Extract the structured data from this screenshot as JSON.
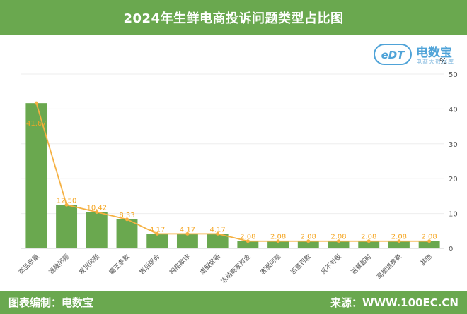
{
  "header": {
    "title": "2024年生鲜电商投诉问题类型占比图"
  },
  "logo": {
    "edt": "eDT",
    "brand": "电数宝",
    "sub": "电商大数据库"
  },
  "unit": "%",
  "footer": {
    "left": "图表编制：电数宝",
    "right": "来源：WWW.100EC.CN"
  },
  "colors": {
    "bar": "#6aa84f",
    "line": "#f5b041",
    "header": "#6aa84f",
    "label": "#f5a623"
  },
  "chart_data": {
    "type": "bar",
    "categories": [
      "商品质量",
      "退款问题",
      "发货问题",
      "霸王条款",
      "售后服务",
      "网络欺诈",
      "虚假促销",
      "冻结商家资金",
      "客服问题",
      "恶意罚款",
      "货不对板",
      "送餐超时",
      "高额退费费"
    ],
    "values": [
      41.67,
      12.5,
      10.42,
      8.33,
      4.17,
      4.17,
      4.17,
      2.08,
      2.08,
      2.08,
      2.08,
      2.08,
      2.08
    ],
    "data_labels": [
      "41.67",
      "12.50",
      "10.42",
      "8.33",
      "4.17",
      "4.17",
      "4.17",
      "2.08",
      "2.08",
      "2.08",
      "2.08",
      "2.08",
      "2.08"
    ],
    "other_category": "其他",
    "other_value": 2.08,
    "other_label": "2.08",
    "ylim": [
      0,
      50
    ],
    "yticks": [
      0,
      10,
      20,
      30,
      40,
      50
    ],
    "ytick_labels": [
      "0",
      "10",
      "20",
      "30",
      "40",
      "50"
    ],
    "y_axis_side": "right",
    "line_overlay": true
  }
}
